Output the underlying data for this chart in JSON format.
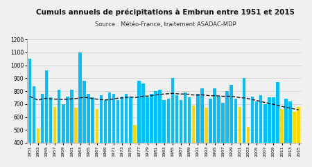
{
  "title": "Cumuls annuels de précipitations à Embrun entre 1951 et 2015",
  "subtitle": "Source : Météo-France, traitement ASADAC-MDP",
  "years": [
    1951,
    1952,
    1953,
    1954,
    1955,
    1956,
    1957,
    1958,
    1959,
    1960,
    1961,
    1962,
    1963,
    1964,
    1965,
    1966,
    1967,
    1968,
    1969,
    1970,
    1971,
    1972,
    1973,
    1974,
    1975,
    1976,
    1977,
    1978,
    1979,
    1980,
    1981,
    1982,
    1983,
    1984,
    1985,
    1986,
    1987,
    1988,
    1989,
    1990,
    1991,
    1992,
    1993,
    1994,
    1995,
    1996,
    1997,
    1998,
    1999,
    2000,
    2001,
    2002,
    2003,
    2004,
    2005,
    2006,
    2007,
    2008,
    2009,
    2010,
    2011,
    2012,
    2013,
    2014,
    2015
  ],
  "values": [
    1050,
    840,
    510,
    780,
    960,
    750,
    680,
    810,
    700,
    760,
    810,
    670,
    1100,
    880,
    780,
    750,
    660,
    770,
    730,
    790,
    780,
    730,
    760,
    780,
    760,
    540,
    880,
    860,
    750,
    780,
    800,
    810,
    730,
    740,
    900,
    770,
    730,
    790,
    750,
    690,
    780,
    820,
    670,
    740,
    820,
    760,
    710,
    800,
    850,
    740,
    680,
    900,
    520,
    760,
    720,
    770,
    700,
    750,
    750,
    870,
    660,
    740,
    720,
    640,
    680
  ],
  "trend": [
    760,
    745,
    730,
    740,
    745,
    740,
    738,
    738,
    735,
    738,
    740,
    742,
    748,
    752,
    748,
    742,
    738,
    735,
    732,
    735,
    740,
    745,
    748,
    752,
    755,
    750,
    755,
    760,
    762,
    765,
    770,
    775,
    778,
    780,
    783,
    780,
    778,
    778,
    776,
    770,
    770,
    772,
    768,
    764,
    765,
    763,
    760,
    760,
    760,
    756,
    750,
    748,
    742,
    735,
    728,
    720,
    712,
    705,
    698,
    690,
    682,
    675,
    668,
    662,
    655
  ],
  "threshold": 700,
  "ylim": [
    400,
    1200
  ],
  "yticks": [
    400,
    500,
    600,
    700,
    800,
    900,
    1000,
    1100,
    1200
  ],
  "color_above": "#00BFFF",
  "color_below": "#FFD700",
  "trend_color": "#111111",
  "background_color": "#F0F0F0",
  "title_fontsize": 7.5,
  "subtitle_fontsize": 6.0,
  "bar_width": 0.75
}
